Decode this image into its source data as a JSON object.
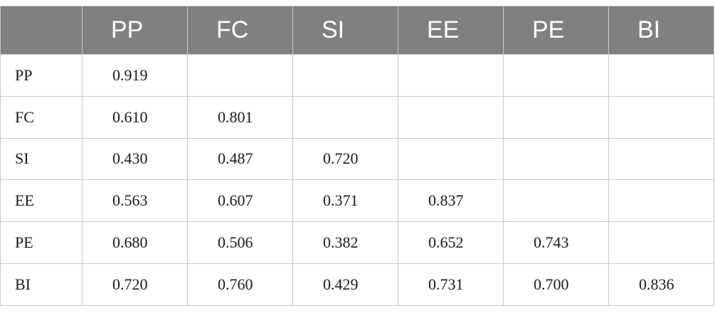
{
  "table": {
    "corner": "",
    "columns": [
      "PP",
      "FC",
      "SI",
      "EE",
      "PE",
      "BI"
    ],
    "rows": [
      {
        "label": "PP",
        "cells": [
          "0.919",
          "",
          "",
          "",
          "",
          ""
        ]
      },
      {
        "label": "FC",
        "cells": [
          "0.610",
          "0.801",
          "",
          "",
          "",
          ""
        ]
      },
      {
        "label": "SI",
        "cells": [
          "0.430",
          "0.487",
          "0.720",
          "",
          "",
          ""
        ]
      },
      {
        "label": "EE",
        "cells": [
          "0.563",
          "0.607",
          "0.371",
          "0.837",
          "",
          ""
        ]
      },
      {
        "label": "PE",
        "cells": [
          "0.680",
          "0.506",
          "0.382",
          "0.652",
          "0.743",
          ""
        ]
      },
      {
        "label": "BI",
        "cells": [
          "0.720",
          "0.760",
          "0.429",
          "0.731",
          "0.700",
          "0.836"
        ]
      }
    ]
  },
  "colors": {
    "header_background": "#808080",
    "header_text": "#ffffff",
    "grid_lines": "#c8c8c8",
    "body_text": "#1a1a1a"
  }
}
